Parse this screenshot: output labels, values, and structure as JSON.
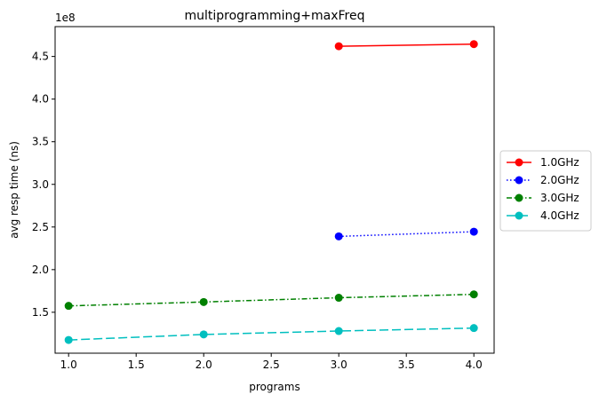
{
  "chart_data": {
    "type": "line",
    "title": "multiprogramming+maxFreq",
    "xlabel": "programs",
    "ylabel": "avg resp time (ns)",
    "y_offset_text": "1e8",
    "y_scale": 100000000,
    "xlim": [
      0.9,
      4.15
    ],
    "ylim": [
      102000000.0,
      485000000.0
    ],
    "x_ticks": [
      1.0,
      1.5,
      2.0,
      2.5,
      3.0,
      3.5,
      4.0
    ],
    "x_tick_labels": [
      "1.0",
      "1.5",
      "2.0",
      "2.5",
      "3.0",
      "3.5",
      "4.0"
    ],
    "y_ticks": [
      150000000.0,
      200000000.0,
      250000000.0,
      300000000.0,
      350000000.0,
      400000000.0,
      450000000.0
    ],
    "y_tick_labels": [
      "1.5",
      "2.0",
      "2.5",
      "3.0",
      "3.5",
      "4.0",
      "4.5"
    ],
    "grid": false,
    "legend_position": "outside-right",
    "series": [
      {
        "name": "1.0GHz",
        "color": "#ff0000",
        "line_style": "solid",
        "marker": "circle",
        "x": [
          3,
          4
        ],
        "values": [
          462000000.0,
          464500000.0
        ]
      },
      {
        "name": "2.0GHz",
        "color": "#0000ff",
        "line_style": "dotted",
        "marker": "circle",
        "x": [
          3,
          4
        ],
        "values": [
          239000000.0,
          244500000.0
        ]
      },
      {
        "name": "3.0GHz",
        "color": "#008000",
        "line_style": "dashdot",
        "marker": "circle",
        "x": [
          1,
          2,
          3,
          4
        ],
        "values": [
          157500000.0,
          162000000.0,
          167000000.0,
          171000000.0
        ]
      },
      {
        "name": "4.0GHz",
        "color": "#00bfbf",
        "line_style": "dashed",
        "marker": "circle",
        "x": [
          1,
          2,
          3,
          4
        ],
        "values": [
          117500000.0,
          124000000.0,
          128000000.0,
          131500000.0
        ]
      }
    ]
  }
}
